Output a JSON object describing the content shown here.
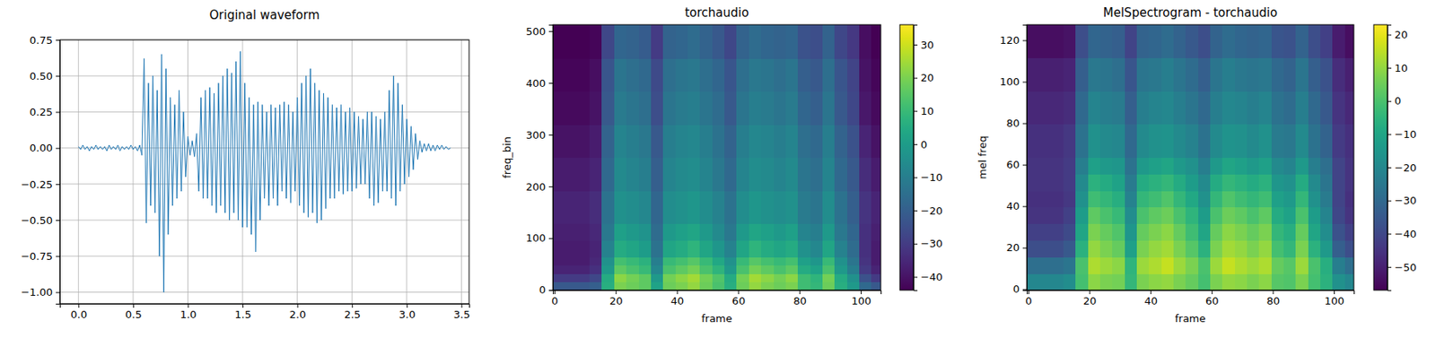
{
  "chart_data": [
    {
      "type": "line",
      "title": "Original waveform",
      "color": "#1f77b4",
      "grid": true,
      "xlim": [
        -0.17,
        3.57
      ],
      "ylim": [
        -1.08,
        0.75
      ],
      "xticks": [
        {
          "value": 0,
          "label": "0.0"
        },
        {
          "value": 0.5,
          "label": "0.5"
        },
        {
          "value": 1,
          "label": "1.0"
        },
        {
          "value": 1.5,
          "label": "1.5"
        },
        {
          "value": 2,
          "label": "2.0"
        },
        {
          "value": 2.5,
          "label": "2.5"
        },
        {
          "value": 3,
          "label": "3.0"
        },
        {
          "value": 3.5,
          "label": "3.5"
        }
      ],
      "yticks": [
        {
          "value": -1,
          "label": "−1.00"
        },
        {
          "value": -0.75,
          "label": "−0.75"
        },
        {
          "value": -0.5,
          "label": "−0.50"
        },
        {
          "value": -0.25,
          "label": "−0.25"
        },
        {
          "value": 0,
          "label": "0.00"
        },
        {
          "value": 0.25,
          "label": "0.25"
        },
        {
          "value": 0.5,
          "label": "0.50"
        },
        {
          "value": 0.75,
          "label": "0.75"
        }
      ],
      "x": [
        0,
        0.02,
        0.04,
        0.06,
        0.08,
        0.1,
        0.12,
        0.14,
        0.16,
        0.18,
        0.2,
        0.22,
        0.24,
        0.26,
        0.28,
        0.3,
        0.32,
        0.34,
        0.36,
        0.38,
        0.4,
        0.42,
        0.44,
        0.46,
        0.48,
        0.5,
        0.52,
        0.54,
        0.56,
        0.58,
        0.6,
        0.62,
        0.64,
        0.66,
        0.68,
        0.7,
        0.72,
        0.74,
        0.76,
        0.78,
        0.8,
        0.82,
        0.84,
        0.86,
        0.88,
        0.9,
        0.92,
        0.94,
        0.96,
        0.98,
        1.0,
        1.02,
        1.04,
        1.06,
        1.08,
        1.1,
        1.12,
        1.14,
        1.16,
        1.18,
        1.2,
        1.22,
        1.24,
        1.26,
        1.28,
        1.3,
        1.32,
        1.34,
        1.36,
        1.38,
        1.4,
        1.42,
        1.44,
        1.46,
        1.48,
        1.5,
        1.52,
        1.54,
        1.56,
        1.58,
        1.6,
        1.62,
        1.64,
        1.66,
        1.68,
        1.7,
        1.72,
        1.74,
        1.76,
        1.78,
        1.8,
        1.82,
        1.84,
        1.86,
        1.88,
        1.9,
        1.92,
        1.94,
        1.96,
        1.98,
        2.0,
        2.02,
        2.04,
        2.06,
        2.08,
        2.1,
        2.12,
        2.14,
        2.16,
        2.18,
        2.2,
        2.22,
        2.24,
        2.26,
        2.28,
        2.3,
        2.32,
        2.34,
        2.36,
        2.38,
        2.4,
        2.42,
        2.44,
        2.46,
        2.48,
        2.5,
        2.52,
        2.54,
        2.56,
        2.58,
        2.6,
        2.62,
        2.64,
        2.66,
        2.68,
        2.7,
        2.72,
        2.74,
        2.76,
        2.78,
        2.8,
        2.82,
        2.84,
        2.86,
        2.88,
        2.9,
        2.92,
        2.94,
        2.96,
        2.98,
        3.0,
        3.02,
        3.04,
        3.06,
        3.08,
        3.1,
        3.12,
        3.14,
        3.16,
        3.18,
        3.2,
        3.22,
        3.24,
        3.26,
        3.28,
        3.3,
        3.32,
        3.34,
        3.36,
        3.38,
        3.4
      ],
      "values": [
        0.01,
        -0.01,
        0.02,
        -0.01,
        0.01,
        -0.02,
        0.01,
        -0.01,
        0.02,
        -0.01,
        0.01,
        -0.01,
        0.01,
        -0.02,
        0.02,
        -0.01,
        0.01,
        -0.01,
        0.02,
        -0.02,
        0.01,
        -0.01,
        0.01,
        -0.01,
        0.02,
        -0.01,
        0.01,
        -0.02,
        0.02,
        -0.05,
        0.62,
        -0.52,
        0.45,
        -0.4,
        0.5,
        -0.45,
        0.4,
        -0.75,
        0.65,
        -1.0,
        0.55,
        -0.6,
        0.35,
        -0.4,
        0.3,
        -0.35,
        0.4,
        -0.3,
        0.25,
        -0.2,
        0.08,
        -0.05,
        0.05,
        -0.06,
        0.1,
        -0.3,
        0.35,
        -0.35,
        0.4,
        -0.35,
        0.42,
        -0.4,
        0.38,
        -0.45,
        0.45,
        -0.4,
        0.5,
        -0.45,
        0.55,
        -0.5,
        0.52,
        -0.45,
        0.6,
        -0.5,
        0.67,
        -0.55,
        0.45,
        -0.55,
        0.35,
        -0.6,
        0.3,
        -0.72,
        0.32,
        -0.5,
        0.3,
        -0.35,
        0.25,
        -0.4,
        0.3,
        -0.35,
        0.28,
        -0.4,
        0.3,
        -0.3,
        0.32,
        -0.35,
        0.3,
        -0.38,
        0.25,
        -0.3,
        0.35,
        -0.4,
        0.45,
        -0.45,
        0.5,
        -0.48,
        0.55,
        -0.45,
        0.45,
        -0.52,
        0.4,
        -0.5,
        0.38,
        -0.42,
        0.35,
        -0.35,
        0.3,
        -0.35,
        0.28,
        -0.3,
        0.3,
        -0.32,
        0.25,
        -0.3,
        0.28,
        -0.3,
        0.25,
        -0.28,
        0.22,
        -0.25,
        0.2,
        -0.25,
        0.25,
        -0.35,
        0.25,
        -0.4,
        0.22,
        -0.38,
        0.2,
        -0.3,
        0.25,
        -0.3,
        0.4,
        -0.35,
        0.5,
        -0.4,
        0.45,
        -0.3,
        0.3,
        -0.25,
        0.2,
        -0.2,
        0.15,
        -0.15,
        0.1,
        -0.08,
        0.05,
        -0.03,
        0.03,
        -0.02,
        0.03,
        -0.02,
        0.02,
        -0.02,
        0.02,
        -0.01,
        0.02,
        -0.01,
        0.01,
        -0.01,
        0.0
      ]
    },
    {
      "type": "heatmap",
      "title": "torchaudio",
      "x_label": "frame",
      "y_label": "freq_bin",
      "color": "viridis",
      "xlim": [
        -0.5,
        106.5
      ],
      "ylim": [
        -0.5,
        512.5
      ],
      "xticks": [
        0,
        20,
        40,
        60,
        80,
        100
      ],
      "yticks": [
        0,
        100,
        200,
        300,
        400,
        500
      ],
      "colorbar_range": [
        -44,
        36
      ],
      "colorbar_ticks": [
        {
          "value": -40,
          "label": "−40"
        },
        {
          "value": -30,
          "label": "−30"
        },
        {
          "value": -20,
          "label": "−20"
        },
        {
          "value": -10,
          "label": "−10"
        },
        0,
        10,
        20,
        30
      ],
      "x_edges": [
        -0.5,
        3.5,
        7.5,
        11.5,
        15.5,
        19.5,
        23.5,
        27.5,
        31.5,
        35.5,
        39.5,
        43.5,
        47.5,
        51.5,
        55.5,
        59.5,
        63.5,
        67.5,
        71.5,
        75.5,
        79.5,
        83.5,
        87.5,
        91.5,
        95.5,
        99.5,
        103.5,
        106.5
      ],
      "y_edges": [
        -0.5,
        15.5,
        31.5,
        47.5,
        63.5,
        95.5,
        127.5,
        191.5,
        255.5,
        319.5,
        383.5,
        447.5,
        512.5
      ],
      "cells": [
        [
          -22,
          -22,
          -22,
          -20,
          6,
          20,
          18,
          16,
          2,
          18,
          20,
          23,
          18,
          13,
          6,
          18,
          23,
          20,
          18,
          20,
          11,
          9,
          18,
          6,
          -1,
          -17,
          -22
        ],
        [
          -30,
          -30,
          -30,
          -27,
          5,
          22,
          19,
          16,
          -1,
          19,
          22,
          25,
          19,
          14,
          5,
          19,
          25,
          22,
          19,
          22,
          11,
          8,
          19,
          5,
          -4,
          -24,
          -30
        ],
        [
          -36,
          -36,
          -36,
          -33,
          -1,
          16,
          13,
          10,
          -7,
          13,
          16,
          19,
          13,
          8,
          -1,
          13,
          19,
          16,
          13,
          16,
          5,
          2,
          13,
          -1,
          -10,
          -30,
          -36
        ],
        [
          -38,
          -38,
          -38,
          -35,
          -4,
          12,
          10,
          7,
          -10,
          10,
          12,
          15,
          10,
          4,
          -4,
          10,
          15,
          12,
          10,
          12,
          1,
          -2,
          10,
          -4,
          -13,
          -32,
          -38
        ],
        [
          -38,
          -38,
          -38,
          -36,
          -9,
          5,
          3,
          0,
          -14,
          3,
          5,
          8,
          3,
          -2,
          -9,
          3,
          8,
          5,
          3,
          5,
          -4,
          -7,
          3,
          -9,
          -16,
          -33,
          -38
        ],
        [
          -37,
          -37,
          -37,
          -35,
          -12,
          1,
          -1,
          -3,
          -16,
          -1,
          1,
          3,
          -1,
          -6,
          -12,
          -1,
          3,
          1,
          -1,
          1,
          -8,
          -10,
          -1,
          -12,
          -18,
          -33,
          -37
        ],
        [
          -36,
          -36,
          -36,
          -34,
          -14,
          -4,
          -5,
          -7,
          -18,
          -5,
          -4,
          -2,
          -5,
          -9,
          -14,
          -5,
          -2,
          -4,
          -5,
          -4,
          -11,
          -13,
          -5,
          -14,
          -20,
          -32,
          -36
        ],
        [
          -38,
          -38,
          -38,
          -36,
          -17,
          -6,
          -8,
          -10,
          -20,
          -8,
          -6,
          -5,
          -8,
          -12,
          -17,
          -8,
          -5,
          -6,
          -8,
          -6,
          -13,
          -15,
          -8,
          -17,
          -22,
          -34,
          -38
        ],
        [
          -40,
          -40,
          -40,
          -38,
          -19,
          -8,
          -10,
          -12,
          -22,
          -10,
          -8,
          -7,
          -10,
          -14,
          -19,
          -10,
          -7,
          -8,
          -10,
          -8,
          -15,
          -17,
          -10,
          -19,
          -24,
          -36,
          -40
        ],
        [
          -42,
          -42,
          -42,
          -40,
          -22,
          -11,
          -13,
          -15,
          -25,
          -13,
          -11,
          -10,
          -13,
          -16,
          -22,
          -13,
          -10,
          -11,
          -13,
          -11,
          -18,
          -20,
          -13,
          -22,
          -27,
          -39,
          -42
        ],
        [
          -43,
          -43,
          -43,
          -41,
          -23,
          -13,
          -15,
          -17,
          -26,
          -15,
          -13,
          -12,
          -15,
          -18,
          -23,
          -15,
          -12,
          -13,
          -15,
          -13,
          -20,
          -22,
          -15,
          -23,
          -28,
          -40,
          -43
        ],
        [
          -44,
          -44,
          -44,
          -43,
          -27,
          -18,
          -19,
          -21,
          -30,
          -19,
          -18,
          -16,
          -19,
          -22,
          -27,
          -19,
          -16,
          -18,
          -19,
          -18,
          -24,
          -25,
          -19,
          -27,
          -31,
          -41,
          -44
        ]
      ]
    },
    {
      "type": "heatmap",
      "title": "MelSpectrogram - torchaudio",
      "x_label": "frame",
      "y_label": "mel freq",
      "color": "viridis",
      "xlim": [
        -0.5,
        106.5
      ],
      "ylim": [
        -0.5,
        127.5
      ],
      "xticks": [
        0,
        20,
        40,
        60,
        80,
        100
      ],
      "yticks": [
        0,
        20,
        40,
        60,
        80,
        100,
        120
      ],
      "colorbar_range": [
        -57,
        23
      ],
      "colorbar_ticks": [
        {
          "value": -50,
          "label": "−50"
        },
        {
          "value": -40,
          "label": "−40"
        },
        {
          "value": -30,
          "label": "−30"
        },
        {
          "value": -20,
          "label": "−20"
        },
        {
          "value": -10,
          "label": "−10"
        },
        0,
        10,
        20
      ],
      "x_edges": [
        -0.5,
        3.5,
        7.5,
        11.5,
        15.5,
        19.5,
        23.5,
        27.5,
        31.5,
        35.5,
        39.5,
        43.5,
        47.5,
        51.5,
        55.5,
        59.5,
        63.5,
        67.5,
        71.5,
        75.5,
        79.5,
        83.5,
        87.5,
        91.5,
        95.5,
        99.5,
        103.5,
        106.5
      ],
      "y_edges": [
        -0.5,
        7.5,
        15.5,
        23.5,
        31.5,
        39.5,
        47.5,
        55.5,
        63.5,
        79.5,
        95.5,
        111.5,
        127.5
      ],
      "cells": [
        [
          -20,
          -20,
          -20,
          -18,
          -1,
          9,
          7,
          6,
          -4,
          7,
          9,
          10,
          7,
          4,
          -1,
          7,
          10,
          9,
          7,
          9,
          2,
          1,
          7,
          -1,
          -6,
          -17,
          -20
        ],
        [
          -28,
          -28,
          -28,
          -26,
          0,
          13,
          11,
          9,
          -5,
          11,
          13,
          16,
          11,
          7,
          0,
          11,
          16,
          13,
          11,
          13,
          4,
          2,
          11,
          0,
          -7,
          -23,
          -28
        ],
        [
          -38,
          -38,
          -38,
          -35,
          -6,
          10,
          7,
          4,
          -12,
          7,
          10,
          12,
          7,
          2,
          -6,
          7,
          12,
          10,
          7,
          10,
          -1,
          -4,
          7,
          -6,
          -14,
          -33,
          -38
        ],
        [
          -42,
          -42,
          -42,
          -39,
          -10,
          7,
          4,
          1,
          -15,
          4,
          7,
          9,
          4,
          -2,
          -10,
          4,
          9,
          7,
          4,
          7,
          -4,
          -7,
          4,
          -10,
          -18,
          -37,
          -42
        ],
        [
          -45,
          -45,
          -45,
          -42,
          -13,
          3,
          0,
          -3,
          -18,
          0,
          3,
          5,
          0,
          -5,
          -13,
          0,
          5,
          3,
          0,
          3,
          -8,
          -11,
          0,
          -13,
          -21,
          -40,
          -45
        ],
        [
          -46,
          -46,
          -46,
          -44,
          -17,
          -2,
          -4,
          -7,
          -22,
          -4,
          -2,
          1,
          -4,
          -9,
          -17,
          -4,
          1,
          -2,
          -4,
          -2,
          -12,
          -14,
          -4,
          -17,
          -24,
          -41,
          -46
        ],
        [
          -45,
          -45,
          -45,
          -43,
          -19,
          -6,
          -8,
          -11,
          -24,
          -8,
          -6,
          -4,
          -8,
          -13,
          -19,
          -8,
          -4,
          -6,
          -8,
          -6,
          -15,
          -17,
          -8,
          -19,
          -26,
          -41,
          -45
        ],
        [
          -45,
          -45,
          -45,
          -43,
          -23,
          -12,
          -14,
          -15,
          -27,
          -14,
          -12,
          -10,
          -14,
          -17,
          -23,
          -14,
          -10,
          -12,
          -14,
          -12,
          -19,
          -21,
          -14,
          -23,
          -28,
          -41,
          -45
        ],
        [
          -46,
          -46,
          -46,
          -44,
          -27,
          -17,
          -19,
          -20,
          -30,
          -19,
          -17,
          -16,
          -19,
          -22,
          -27,
          -19,
          -16,
          -17,
          -19,
          -17,
          -24,
          -25,
          -19,
          -27,
          -32,
          -43,
          -46
        ],
        [
          -48,
          -48,
          -48,
          -47,
          -30,
          -21,
          -23,
          -24,
          -33,
          -23,
          -21,
          -20,
          -23,
          -26,
          -30,
          -23,
          -20,
          -21,
          -23,
          -21,
          -27,
          -29,
          -23,
          -30,
          -35,
          -45,
          -48
        ],
        [
          -50,
          -50,
          -50,
          -49,
          -33,
          -25,
          -26,
          -28,
          -36,
          -26,
          -25,
          -23,
          -26,
          -29,
          -33,
          -26,
          -23,
          -25,
          -26,
          -25,
          -30,
          -32,
          -26,
          -33,
          -37,
          -47,
          -50
        ],
        [
          -54,
          -54,
          -54,
          -53,
          -38,
          -31,
          -32,
          -33,
          -41,
          -32,
          -31,
          -29,
          -32,
          -35,
          -38,
          -32,
          -29,
          -31,
          -32,
          -31,
          -36,
          -37,
          -32,
          -38,
          -42,
          -51,
          -54
        ]
      ]
    }
  ]
}
